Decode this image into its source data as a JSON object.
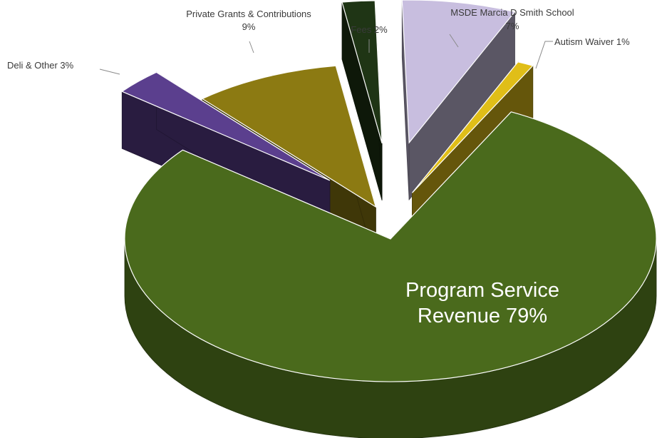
{
  "chart_data": {
    "type": "pie",
    "style": "3d-exploded",
    "categories": [
      "Program Service Revenue",
      "Deli & Other",
      "Private Grants & Contributions",
      "Fees",
      "MSDE Marcia D Smith School",
      "Autism Waiver"
    ],
    "values": [
      79,
      3,
      9,
      2,
      7,
      1
    ],
    "unit": "%",
    "colors": [
      "#4a6a1c",
      "#5b3f8e",
      "#8c7a12",
      "#1f3515",
      "#c8bedf",
      "#e0be18"
    ],
    "labels": {
      "program": [
        "Program Service",
        "Revenue 79%"
      ],
      "deli": [
        "Deli & Other 3%"
      ],
      "grants": [
        "Private Grants & Contributions",
        "9%"
      ],
      "fees": [
        "Fees 2%"
      ],
      "msde": [
        "MSDE Marcia D Smith School",
        "7%"
      ],
      "autism": [
        "Autism Waiver 1%"
      ]
    }
  }
}
